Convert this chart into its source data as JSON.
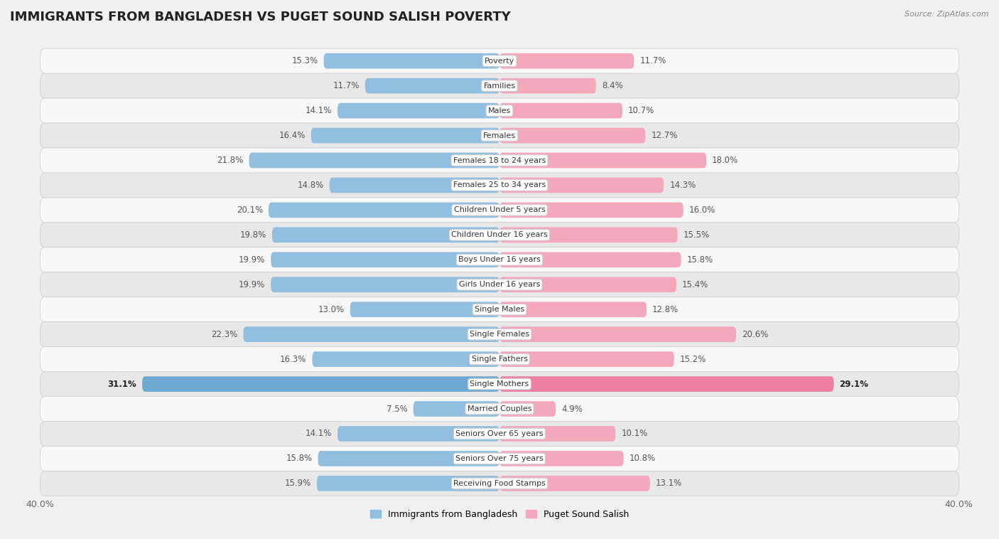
{
  "title": "IMMIGRANTS FROM BANGLADESH VS PUGET SOUND SALISH POVERTY",
  "source": "Source: ZipAtlas.com",
  "categories": [
    "Poverty",
    "Families",
    "Males",
    "Females",
    "Females 18 to 24 years",
    "Females 25 to 34 years",
    "Children Under 5 years",
    "Children Under 16 years",
    "Boys Under 16 years",
    "Girls Under 16 years",
    "Single Males",
    "Single Females",
    "Single Fathers",
    "Single Mothers",
    "Married Couples",
    "Seniors Over 65 years",
    "Seniors Over 75 years",
    "Receiving Food Stamps"
  ],
  "left_values": [
    15.3,
    11.7,
    14.1,
    16.4,
    21.8,
    14.8,
    20.1,
    19.8,
    19.9,
    19.9,
    13.0,
    22.3,
    16.3,
    31.1,
    7.5,
    14.1,
    15.8,
    15.9
  ],
  "right_values": [
    11.7,
    8.4,
    10.7,
    12.7,
    18.0,
    14.3,
    16.0,
    15.5,
    15.8,
    15.4,
    12.8,
    20.6,
    15.2,
    29.1,
    4.9,
    10.1,
    10.8,
    13.1
  ],
  "left_color": "#92BFE0",
  "right_color": "#F4A8BC",
  "highlight_left_color": "#6FA8D0",
  "highlight_right_color": "#EE7FA0",
  "highlight_rows": [
    13
  ],
  "bg_color": "#f0f0f0",
  "row_even_color": "#f8f8f8",
  "row_odd_color": "#e8e8e8",
  "bar_height": 0.62,
  "xlim": 40.0,
  "legend_left": "Immigrants from Bangladesh",
  "legend_right": "Puget Sound Salish",
  "title_fontsize": 13,
  "label_fontsize": 8.5,
  "cat_fontsize": 8.0
}
